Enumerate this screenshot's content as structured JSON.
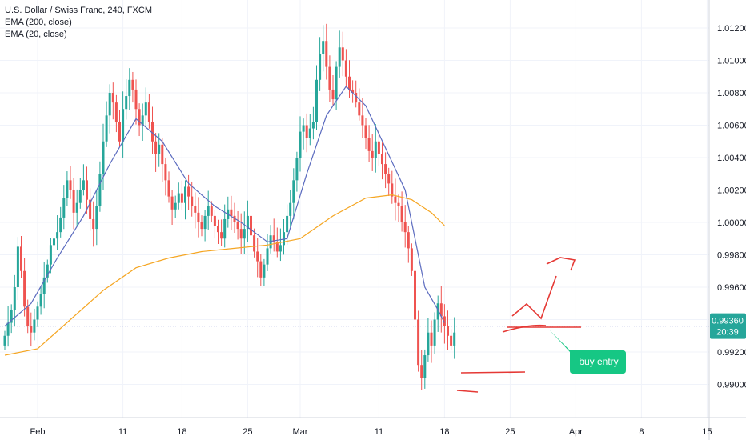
{
  "legend": {
    "symbol": "U.S. Dollar / Swiss Franc, 240, FXCM",
    "ema200": "EMA (200, close)",
    "ema20": "EMA (20, close)"
  },
  "price_tag": {
    "value": "0.99360",
    "time": "20:39"
  },
  "annotation": {
    "label": "buy entry"
  },
  "colors": {
    "up": "#26a69a",
    "down": "#ef5350",
    "ema200": "#f5a623",
    "ema20": "#5b6bbf",
    "price_line": "#4a5bb5",
    "annotation_bg": "#16c784",
    "drawing": "#e53935"
  },
  "chart_data": {
    "type": "candlestick",
    "y_ticks": [
      "0.99000",
      "0.99200",
      "0.99400",
      "0.99600",
      "0.99800",
      "1.00000",
      "1.00200",
      "1.00400",
      "1.00600",
      "1.00800",
      "1.01000",
      "1.01200"
    ],
    "ylim": [
      0.988,
      1.0128
    ],
    "x_ticks": [
      {
        "label": "Feb",
        "bar": 10
      },
      {
        "label": "11",
        "bar": 36
      },
      {
        "label": "18",
        "bar": 54
      },
      {
        "label": "25",
        "bar": 74
      },
      {
        "label": "Mar",
        "bar": 90
      },
      {
        "label": "11",
        "bar": 114
      },
      {
        "label": "18",
        "bar": 134
      },
      {
        "label": "25",
        "bar": 154
      },
      {
        "label": "Apr",
        "bar": 174
      },
      {
        "label": "8",
        "bar": 194
      },
      {
        "label": "15",
        "bar": 214
      }
    ],
    "ohlc_close_path": [
      0.993,
      0.9938,
      0.9946,
      0.996,
      0.9985,
      0.997,
      0.9948,
      0.9936,
      0.9932,
      0.994,
      0.9948,
      0.9956,
      0.9966,
      0.9974,
      0.9986,
      0.999,
      0.9994,
      1.0003,
      1.0015,
      1.0026,
      1.002,
      1.0006,
      1.0012,
      1.002,
      1.0026,
      1.0014,
      1.0002,
      0.9996,
      1.001,
      1.003,
      1.005,
      1.0066,
      1.008,
      1.0074,
      1.0062,
      1.005,
      1.007,
      1.0078,
      1.0088,
      1.0082,
      1.007,
      1.006,
      1.0066,
      1.0074,
      1.0062,
      1.005,
      1.0042,
      1.0048,
      1.0036,
      1.0026,
      1.0016,
      1.0008,
      1.0012,
      1.0018,
      1.0012,
      1.0022,
      1.0016,
      1.001,
      1.0006,
      1.0,
      0.9996,
      1.0004,
      1.001,
      1.0004,
      0.9998,
      0.9994,
      0.999,
      1.0002,
      1.0008,
      1.0004,
      1.0,
      0.9996,
      0.999,
      0.9996,
      1.0004,
      0.9992,
      0.9982,
      0.9976,
      0.9966,
      0.9974,
      0.9984,
      0.9992,
      0.9988,
      0.9982,
      0.9986,
      0.9994,
      1.0004,
      1.0012,
      1.0026,
      1.004,
      1.0056,
      1.006,
      1.0052,
      1.0058,
      1.0062,
      1.0088,
      1.0104,
      1.0112,
      1.0096,
      1.0082,
      1.0076,
      1.0096,
      1.0108,
      1.01,
      1.009,
      1.0082,
      1.008,
      1.0074,
      1.0066,
      1.006,
      1.0052,
      1.0044,
      1.004,
      1.005,
      1.0042,
      1.0036,
      1.003,
      1.0024,
      1.0016,
      1.0012,
      1.001,
      1.0,
      0.9994,
      0.9984,
      0.997,
      0.994,
      0.9912,
      0.9904,
      0.9918,
      0.9932,
      0.9924,
      0.994,
      0.995,
      0.9942,
      0.9936,
      0.993,
      0.9924,
      0.9932
    ],
    "ema200": [
      [
        0,
        0.9918
      ],
      [
        10,
        0.9922
      ],
      [
        20,
        0.994
      ],
      [
        30,
        0.9958
      ],
      [
        40,
        0.9972
      ],
      [
        50,
        0.9978
      ],
      [
        60,
        0.9982
      ],
      [
        70,
        0.9984
      ],
      [
        80,
        0.9986
      ],
      [
        90,
        0.999
      ],
      [
        100,
        1.0004
      ],
      [
        110,
        1.0015
      ],
      [
        118,
        1.0017
      ],
      [
        124,
        1.0014
      ],
      [
        130,
        1.0006
      ],
      [
        134,
        0.9998
      ]
    ],
    "ema20": [
      [
        0,
        0.9936
      ],
      [
        8,
        0.995
      ],
      [
        16,
        0.9978
      ],
      [
        24,
        1.0004
      ],
      [
        32,
        1.0036
      ],
      [
        40,
        1.0064
      ],
      [
        48,
        1.005
      ],
      [
        56,
        1.0024
      ],
      [
        64,
        1.001
      ],
      [
        72,
        1.0
      ],
      [
        80,
        0.9988
      ],
      [
        86,
        0.999
      ],
      [
        92,
        1.003
      ],
      [
        98,
        1.0066
      ],
      [
        104,
        1.0084
      ],
      [
        110,
        1.0072
      ],
      [
        116,
        1.0046
      ],
      [
        122,
        1.002
      ],
      [
        126,
        0.998
      ],
      [
        128,
        0.996
      ],
      [
        132,
        0.9946
      ],
      [
        134,
        0.9938
      ]
    ],
    "price_line": 0.9936
  }
}
